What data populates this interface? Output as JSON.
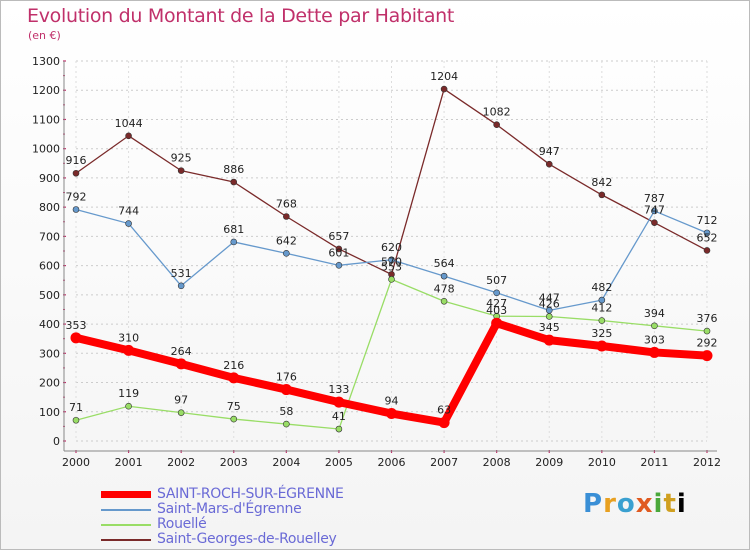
{
  "title": "Evolution du Montant de la Dette par Habitant",
  "subtitle": "(en €)",
  "logo": "Proxiti",
  "chart_data": {
    "type": "line",
    "x": [
      "2000",
      "2001",
      "2002",
      "2003",
      "2004",
      "2005",
      "2006",
      "2007",
      "2008",
      "2009",
      "2010",
      "2011",
      "2012"
    ],
    "ylim": [
      0,
      1300
    ],
    "yticks": [
      0,
      100,
      200,
      300,
      400,
      500,
      600,
      700,
      800,
      900,
      1000,
      1100,
      1200,
      1300
    ],
    "grid": "horizontal-dashed",
    "legend": "bottom-left",
    "series": [
      {
        "name": "SAINT-ROCH-SUR-ÉGRENNE",
        "color": "#ff0000",
        "values": [
          353,
          310,
          264,
          216,
          176,
          133,
          94,
          63,
          403,
          345,
          325,
          303,
          292
        ]
      },
      {
        "name": "Saint-Mars-d'Égrenne",
        "color": "#6699cc",
        "values": [
          792,
          744,
          531,
          681,
          642,
          601,
          620,
          564,
          507,
          447,
          482,
          787,
          712
        ]
      },
      {
        "name": "Rouellé",
        "color": "#99dd66",
        "values": [
          71,
          119,
          97,
          75,
          58,
          41,
          553,
          478,
          427,
          426,
          412,
          394,
          376
        ]
      },
      {
        "name": "Saint-Georges-de-Rouelley",
        "color": "#7a2a2a",
        "values": [
          916,
          1044,
          925,
          886,
          768,
          657,
          570,
          1204,
          1082,
          947,
          842,
          747,
          652
        ]
      }
    ]
  }
}
